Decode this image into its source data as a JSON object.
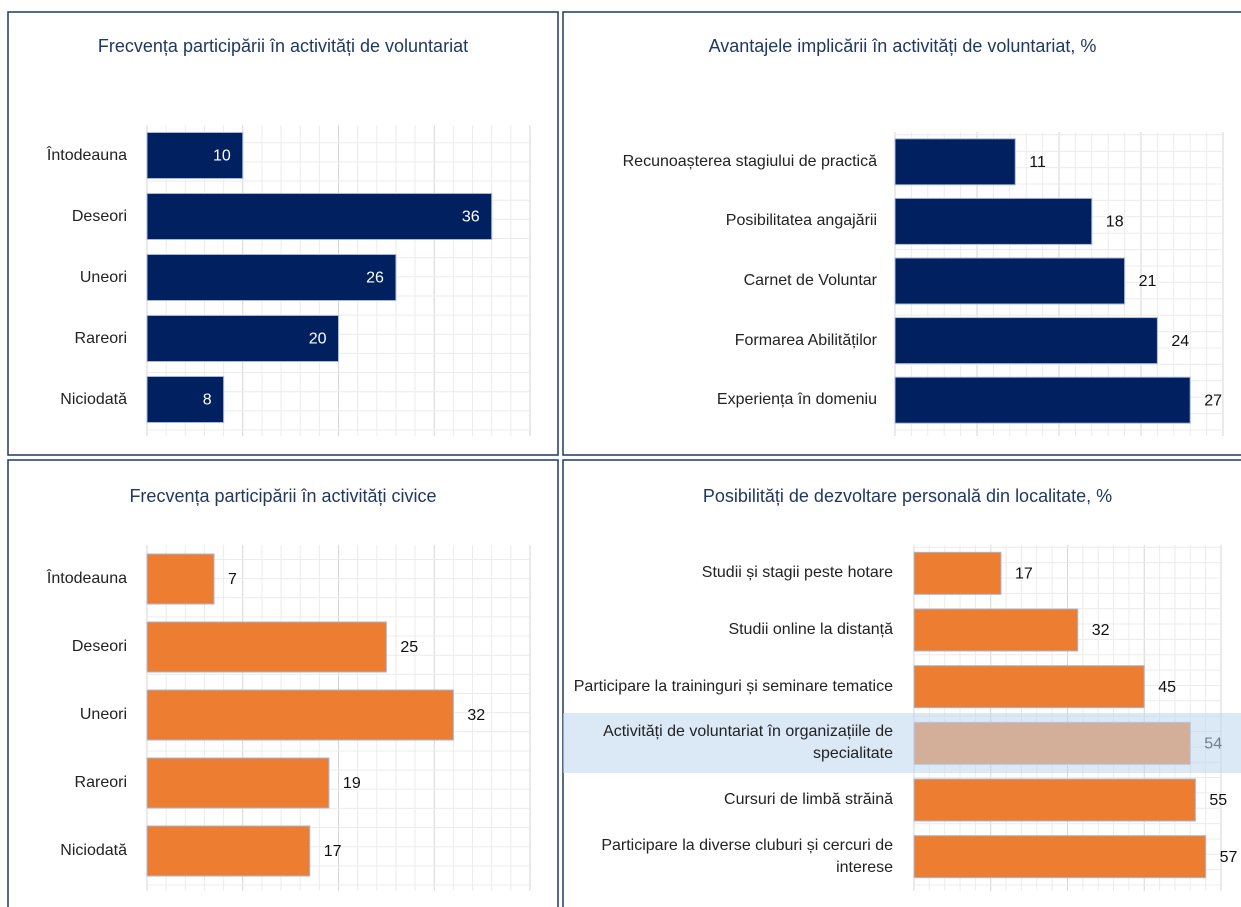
{
  "chart_data": [
    {
      "type": "bar",
      "orientation": "horizontal",
      "title": "Frecvența participării în activități de voluntariat",
      "categories": [
        "Întodeauna",
        "Deseori",
        "Uneori",
        "Rareori",
        "Niciodată"
      ],
      "values": [
        10,
        36,
        26,
        20,
        8
      ],
      "color": "#002060",
      "xlim": [
        0,
        40
      ],
      "grid": true,
      "label_position": "inside"
    },
    {
      "type": "bar",
      "orientation": "horizontal",
      "title": "Avantajele implicării în activități de voluntariat, %",
      "categories": [
        "Recunoașterea stagiului de practică",
        "Posibilitatea angajării",
        "Carnet de Voluntar",
        "Formarea Abilităților",
        "Experiența în domeniu"
      ],
      "values": [
        11,
        18,
        21,
        24,
        27
      ],
      "color": "#002060",
      "xlim": [
        0,
        30
      ],
      "grid": true,
      "label_position": "outside"
    },
    {
      "type": "bar",
      "orientation": "horizontal",
      "title": "Frecvența participării în activități civice",
      "categories": [
        "Întodeauna",
        "Deseori",
        "Uneori",
        "Rareori",
        "Niciodată"
      ],
      "values": [
        7,
        25,
        32,
        19,
        17
      ],
      "color": "#ED7D31",
      "xlim": [
        0,
        40
      ],
      "grid": true,
      "label_position": "outside"
    },
    {
      "type": "bar",
      "orientation": "horizontal",
      "title": "Posibilități de dezvoltare personală din localitate, %",
      "categories": [
        "Studii și stagii peste hotare",
        "Studii online la distanță",
        "Participare la traininguri și seminare tematice",
        "Activități de voluntariat în organizațiile de specialitate",
        "Cursuri de limbă străină",
        "Participare la diverse cluburi și cercuri de interese"
      ],
      "values": [
        17,
        32,
        45,
        54,
        55,
        57
      ],
      "color": "#ED7D31",
      "xlim": [
        0,
        60
      ],
      "grid": true,
      "label_position": "outside"
    }
  ]
}
